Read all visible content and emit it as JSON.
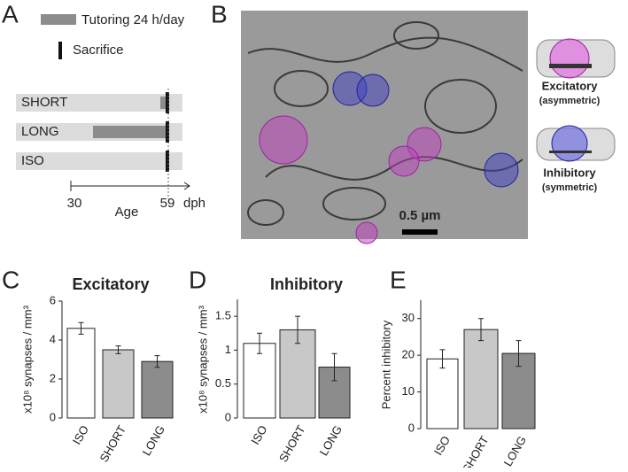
{
  "panel_labels": [
    "A",
    "B",
    "C",
    "D",
    "E"
  ],
  "timeline": {
    "legend": [
      "Tutoring 24 h/day",
      "Sacrifice"
    ],
    "groups": [
      "SHORT",
      "LONG",
      "ISO"
    ],
    "ticks": [
      30,
      59
    ],
    "x_label": "Age",
    "unit": "dph"
  },
  "micrograph": {
    "scale_bar": "0.5 µm",
    "labels": [
      {
        "title": "Excitatory",
        "subtitle": "(asymmetric)"
      },
      {
        "title": "Inhibitory",
        "subtitle": "(symmetric)"
      }
    ]
  },
  "chart_data": [
    {
      "type": "bar",
      "title": "Excitatory",
      "y_label": "x10⁸ synapses / mm³",
      "categories": [
        "ISO",
        "SHORT",
        "LONG"
      ],
      "values": [
        4.6,
        3.5,
        2.9
      ],
      "errors": [
        0.3,
        0.2,
        0.3
      ],
      "colors": [
        "#ffffff",
        "#c8c8c8",
        "#8c8c8c"
      ],
      "ylim": [
        0,
        6
      ],
      "yticks": [
        0,
        2,
        4,
        6
      ]
    },
    {
      "type": "bar",
      "title": "Inhibitory",
      "y_label": "x10⁸ synapses / mm³",
      "categories": [
        "ISO",
        "SHORT",
        "LONG"
      ],
      "values": [
        1.1,
        1.3,
        0.75
      ],
      "errors": [
        0.15,
        0.2,
        0.2
      ],
      "colors": [
        "#ffffff",
        "#c8c8c8",
        "#8c8c8c"
      ],
      "ylim": [
        0,
        1.75
      ],
      "yticks": [
        0,
        0.5,
        1,
        1.5
      ]
    },
    {
      "type": "bar",
      "title": null,
      "y_label": "Percent inhibitory",
      "categories": [
        "ISO",
        "SHORT",
        "LONG"
      ],
      "values": [
        19,
        27,
        20.5
      ],
      "errors": [
        2.5,
        3,
        3.5
      ],
      "colors": [
        "#ffffff",
        "#c8c8c8",
        "#8c8c8c"
      ],
      "ylim": [
        0,
        35
      ],
      "yticks": [
        0,
        10,
        20,
        30
      ]
    }
  ]
}
